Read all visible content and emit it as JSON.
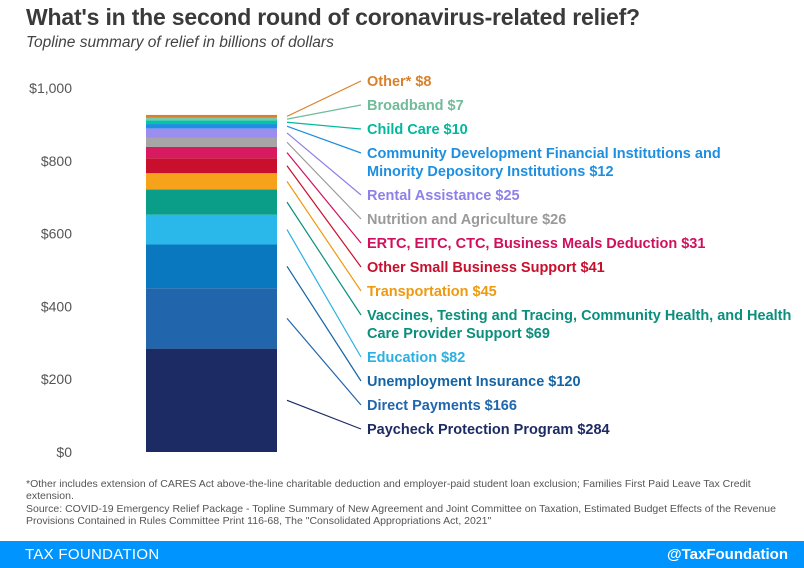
{
  "title": "What's in the second round of coronavirus-related relief?",
  "subtitle": "Topline summary of relief in billions of dollars",
  "footnote": "*Other includes extension of CARES Act above-the-line charitable deduction and employer-paid student loan exclusion; Families First Paid Leave Tax Credit extension.",
  "source": "Source: COVID-19 Emergency Relief Package - Topline Summary of New Agreement and Joint Committee on Taxation, Estimated Budget Effects of the Revenue Provisions Contained in Rules Committee Print 116-68, The \"Consolidated Appropriations Act, 2021\"",
  "footer": {
    "brand": "TAX FOUNDATION",
    "handle": "@TaxFoundation"
  },
  "chart_data": {
    "type": "bar",
    "stacked": true,
    "ylim": [
      0,
      1000
    ],
    "yticks": [
      {
        "value": 0,
        "label": "$0"
      },
      {
        "value": 200,
        "label": "$200"
      },
      {
        "value": 400,
        "label": "$400"
      },
      {
        "value": 600,
        "label": "$600"
      },
      {
        "value": 800,
        "label": "$800"
      },
      {
        "value": 1000,
        "label": "$1,000"
      }
    ],
    "series": [
      {
        "label": [
          "Paycheck Protection Program $284"
        ],
        "value": 284,
        "color": "#1d2b64",
        "label_color": "#1d2b64"
      },
      {
        "label": [
          "Direct Payments $166"
        ],
        "value": 166,
        "color": "#2166ac",
        "label_color": "#2166ac"
      },
      {
        "label": [
          "Unemployment Insurance $120"
        ],
        "value": 120,
        "color": "#0a78bf",
        "label_color": "#1464a5"
      },
      {
        "label": [
          "Education $82"
        ],
        "value": 82,
        "color": "#2ab7ea",
        "label_color": "#2ab0e2"
      },
      {
        "label": [
          "Vaccines, Testing and Tracing, Community Health, and Health",
          "Care Provider Support $69"
        ],
        "value": 69,
        "color": "#0a9e88",
        "label_color": "#0a8f7c"
      },
      {
        "label": [
          "Transportation $45"
        ],
        "value": 45,
        "color": "#f7a21b",
        "label_color": "#ee9a10"
      },
      {
        "label": [
          "Other Small Business Support $41"
        ],
        "value": 41,
        "color": "#c8102e",
        "label_color": "#c8102e"
      },
      {
        "label": [
          "ERTC, EITC, CTC, Business Meals Deduction $31"
        ],
        "value": 31,
        "color": "#d81b60",
        "label_color": "#d0105e"
      },
      {
        "label": [
          "Nutrition and Agriculture $26"
        ],
        "value": 26,
        "color": "#a6a6a6",
        "label_color": "#9a9a9a"
      },
      {
        "label": [
          "Rental Assistance $25"
        ],
        "value": 25,
        "color": "#9b8ef0",
        "label_color": "#8d80e8"
      },
      {
        "label": [
          "Community Development Financial Institutions and",
          "Minority Depository Institutions $12"
        ],
        "value": 12,
        "color": "#1e8fe0",
        "label_color": "#1e8fe0"
      },
      {
        "label": [
          "Child Care $10"
        ],
        "value": 10,
        "color": "#00c5a8",
        "label_color": "#00b89c"
      },
      {
        "label": [
          "Broadband $7"
        ],
        "value": 7,
        "color": "#7cc8a8",
        "label_color": "#6fbb9a"
      },
      {
        "label": [
          "Other* $8"
        ],
        "value": 8,
        "color": "#d9812a",
        "label_color": "#d9812a"
      }
    ]
  }
}
